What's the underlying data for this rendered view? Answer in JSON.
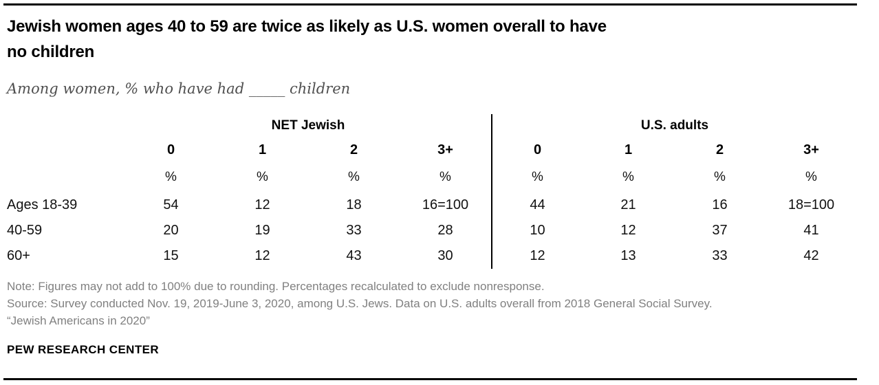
{
  "chart_data": {
    "type": "table",
    "title": "Jewish women ages 40 to 59 are twice as likely as U.S. women overall to have\nno children",
    "subtitle": "Among women, % who have had _____ children",
    "unit_row_symbol": "%",
    "column_groups": [
      "NET Jewish",
      "U.S. adults"
    ],
    "columns": [
      "0",
      "1",
      "2",
      "3+"
    ],
    "rows": [
      {
        "label": "Ages 18-39",
        "jewish": [
          "54",
          "12",
          "18",
          "16=100"
        ],
        "us_adults": [
          "44",
          "21",
          "16",
          "18=100"
        ]
      },
      {
        "label": "40-59",
        "jewish": [
          "20",
          "19",
          "33",
          "28"
        ],
        "us_adults": [
          "10",
          "12",
          "37",
          "41"
        ]
      },
      {
        "label": "60+",
        "jewish": [
          "15",
          "12",
          "43",
          "30"
        ],
        "us_adults": [
          "12",
          "13",
          "33",
          "42"
        ]
      }
    ],
    "layout": {
      "group_divider": true,
      "gridlines": "none"
    }
  },
  "notes": {
    "note": "Note: Figures may not add to 100% due to rounding. Percentages recalculated to exclude nonresponse.",
    "source": "Source: Survey conducted Nov. 19, 2019-June 3, 2020, among U.S. Jews. Data on U.S. adults overall from 2018 General Social Survey.",
    "quote": "“Jewish Americans in 2020”"
  },
  "footer": {
    "brand": "PEW RESEARCH CENTER"
  },
  "colors": {
    "rule": "#000000",
    "note_gray": "#808080",
    "subtitle_gray": "#4f4f4f"
  }
}
